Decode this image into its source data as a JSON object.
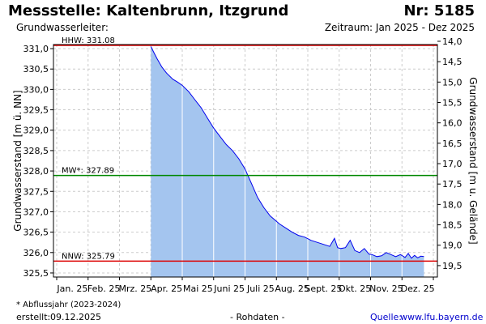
{
  "header": {
    "title": "Messstelle: Kaltenbrunn, Itzgrund",
    "station_number": "Nr: 5185",
    "aquifer_label": "Grundwasserleiter:",
    "period": "Zeitraum: Jan 2025 - Dez 2025"
  },
  "footer": {
    "footnote": "* Abflussjahr (2023-2024)",
    "created_label": "erstellt:",
    "created_date": "09.12.2025",
    "raw_data": "- Rohdaten -",
    "source_label": "Quelle:",
    "source_link": "www.lfu.bayern.de"
  },
  "colors": {
    "area_fill": "#a4c5ef",
    "series_line": "#0000ee",
    "hhw_line": "#dd0000",
    "mw_line": "#008800",
    "nnw_line": "#dd0000",
    "grid": "#cccccc",
    "month_divider": "#ffffff"
  },
  "chart_data": {
    "type": "area",
    "ylabel": "Grundwasserstand [m ü. NN]",
    "y2label": "Grundwasserstand [m u. Gelände]",
    "xlim": [
      0,
      12
    ],
    "ylim": [
      325.4,
      331.1
    ],
    "y2lim": [
      19.78,
      14.08
    ],
    "grid": true,
    "x_ticks": [
      "Jan. 25",
      "Feb. 25",
      "Mrz. 25",
      "Apr. 25",
      "Mai 25",
      "Juni 25",
      "Juli 25",
      "Aug. 25",
      "Sept. 25",
      "Okt. 25",
      "Nov. 25",
      "Dez. 25"
    ],
    "y_ticks": [
      "325,5",
      "326,0",
      "326,5",
      "327,0",
      "327,5",
      "328,0",
      "328,5",
      "329,0",
      "329,5",
      "330,0",
      "330,5",
      "331,0"
    ],
    "y_tick_values": [
      325.5,
      326.0,
      326.5,
      327.0,
      327.5,
      328.0,
      328.5,
      329.0,
      329.5,
      330.0,
      330.5,
      331.0
    ],
    "y2_ticks": [
      "14,0",
      "14,5",
      "15,0",
      "15,5",
      "16,0",
      "16,5",
      "17,0",
      "17,5",
      "18,0",
      "18,5",
      "19,0",
      "19,5"
    ],
    "y2_tick_values": [
      14.0,
      14.5,
      15.0,
      15.5,
      16.0,
      16.5,
      17.0,
      17.5,
      18.0,
      18.5,
      19.0,
      19.5
    ],
    "reference_lines": [
      {
        "name": "HHW",
        "label": "HHW: 331.08",
        "value": 331.08
      },
      {
        "name": "MW",
        "label": "MW*: 327.89",
        "value": 327.89
      },
      {
        "name": "NNW",
        "label": "NNW: 325.79",
        "value": 325.79
      }
    ],
    "series": [
      {
        "x": [
          3.0,
          3.1,
          3.2,
          3.35,
          3.5,
          3.7,
          3.85,
          4.0,
          4.2,
          4.4,
          4.6,
          4.8,
          5.0,
          5.2,
          5.4,
          5.6,
          5.8,
          6.0,
          6.2,
          6.4,
          6.6,
          6.8,
          6.95,
          7.1,
          7.3,
          7.5,
          7.7,
          7.9,
          8.1,
          8.3,
          8.5,
          8.7,
          8.85,
          8.95,
          9.05,
          9.2,
          9.35,
          9.5,
          9.65,
          9.8,
          9.95,
          10.05,
          10.2,
          10.35,
          10.5,
          10.65,
          10.8,
          10.95,
          11.1,
          11.2,
          11.3,
          11.4,
          11.5,
          11.6,
          11.7
        ],
        "y": [
          331.05,
          330.9,
          330.75,
          330.55,
          330.4,
          330.25,
          330.18,
          330.1,
          329.95,
          329.75,
          329.55,
          329.3,
          329.05,
          328.85,
          328.65,
          328.5,
          328.3,
          328.05,
          327.7,
          327.35,
          327.1,
          326.9,
          326.8,
          326.7,
          326.6,
          326.5,
          326.42,
          326.38,
          326.3,
          326.25,
          326.2,
          326.15,
          326.35,
          326.12,
          326.1,
          326.12,
          326.3,
          326.05,
          326.0,
          326.1,
          325.96,
          325.95,
          325.9,
          325.92,
          326.0,
          325.95,
          325.9,
          325.95,
          325.88,
          325.98,
          325.86,
          325.93,
          325.87,
          325.91,
          325.9
        ]
      }
    ]
  }
}
